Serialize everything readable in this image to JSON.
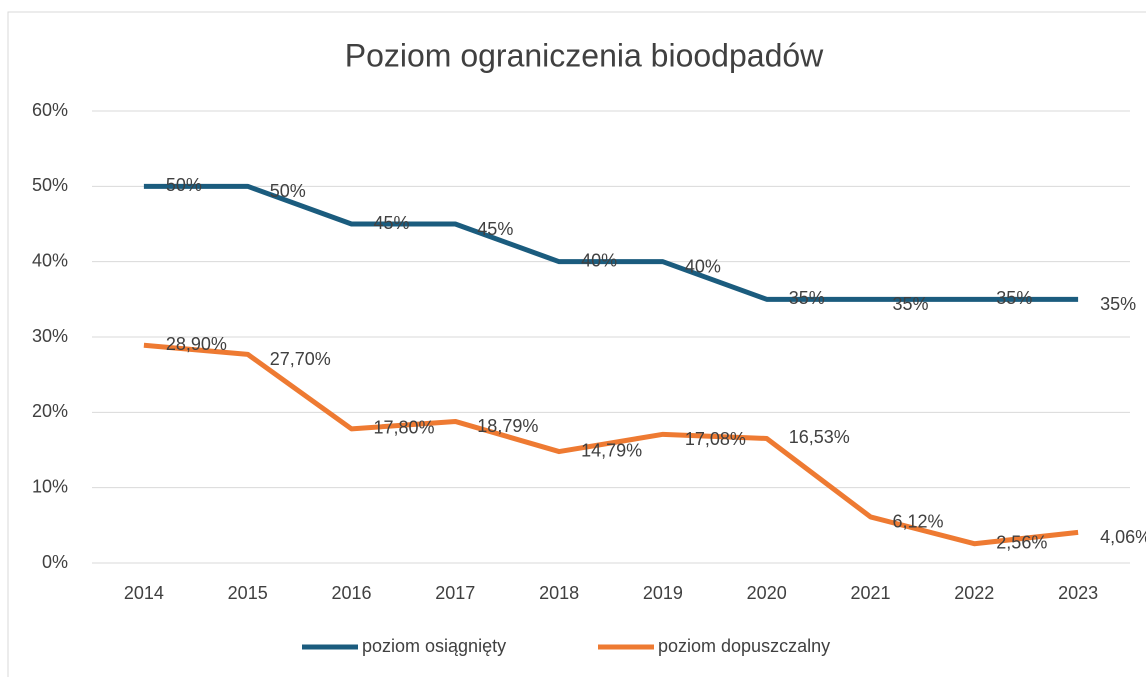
{
  "chart_data": {
    "type": "line",
    "title": "Poziom ograniczenia bioodpadów",
    "categories": [
      "2014",
      "2015",
      "2016",
      "2017",
      "2018",
      "2019",
      "2020",
      "2021",
      "2022",
      "2023"
    ],
    "series": [
      {
        "name": "poziom osiągnięty",
        "color": "#1b5c7e",
        "values": [
          50,
          50,
          45,
          45,
          40,
          40,
          35,
          35,
          35,
          35
        ],
        "value_labels": [
          "50%",
          "50%",
          "45%",
          "45%",
          "40%",
          "40%",
          "35%",
          "35%",
          "35%",
          "35%"
        ]
      },
      {
        "name": "poziom dopuszczalny",
        "color": "#ee7a32",
        "values": [
          28.9,
          27.7,
          17.8,
          18.79,
          14.79,
          17.08,
          16.53,
          6.12,
          2.56,
          4.06
        ],
        "value_labels": [
          "28,90%",
          "27,70%",
          "17,80%",
          "18,79%",
          "14,79%",
          "17,08%",
          "16,53%",
          "6,12%",
          "2,56%",
          "4,06%"
        ]
      }
    ],
    "ylim": [
      0,
      60
    ],
    "yticks": [
      {
        "value": 0,
        "label": "0%"
      },
      {
        "value": 10,
        "label": "10%"
      },
      {
        "value": 20,
        "label": "20%"
      },
      {
        "value": 30,
        "label": "30%"
      },
      {
        "value": 40,
        "label": "40%"
      },
      {
        "value": 50,
        "label": "50%"
      },
      {
        "value": 60,
        "label": "60%"
      }
    ],
    "grid": true,
    "legend": "bottom"
  }
}
